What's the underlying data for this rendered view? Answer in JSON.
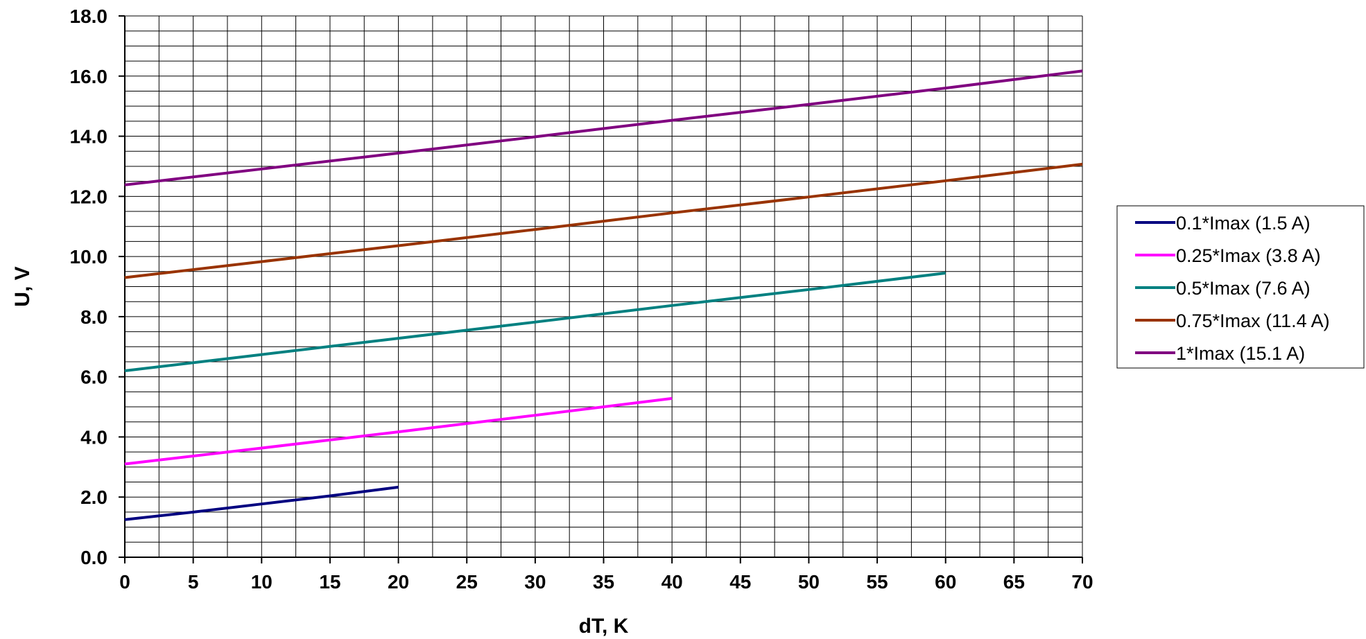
{
  "chart_data": {
    "type": "line",
    "xlabel": "dT, K",
    "ylabel": "U, V",
    "xlim": [
      0,
      70
    ],
    "ylim": [
      0,
      18
    ],
    "x_ticks": [
      0,
      5,
      10,
      15,
      20,
      25,
      30,
      35,
      40,
      45,
      50,
      55,
      60,
      65,
      70
    ],
    "x_tick_labels": [
      "0",
      "5",
      "10",
      "15",
      "20",
      "25",
      "30",
      "35",
      "40",
      "45",
      "50",
      "55",
      "60",
      "65",
      "70"
    ],
    "y_ticks": [
      0,
      2,
      4,
      6,
      8,
      10,
      12,
      14,
      16,
      18
    ],
    "y_tick_labels": [
      "0.0",
      "2.0",
      "4.0",
      "6.0",
      "8.0",
      "10.0",
      "12.0",
      "14.0",
      "16.0",
      "18.0"
    ],
    "x_minor_step": 2.5,
    "y_minor_step": 0.5,
    "grid": true,
    "legend_position": "right",
    "series": [
      {
        "name": "0.1*Imax (1.5 A)",
        "color": "#000080",
        "x": [
          0,
          5,
          10,
          15,
          20
        ],
        "y": [
          1.25,
          1.5,
          1.77,
          2.04,
          2.33
        ]
      },
      {
        "name": "0.25*Imax (3.8 A)",
        "color": "#ff00ff",
        "x": [
          0,
          10,
          20,
          30,
          40
        ],
        "y": [
          3.1,
          3.63,
          4.17,
          4.72,
          5.28
        ]
      },
      {
        "name": "0.5*Imax (7.6 A)",
        "color": "#008080",
        "x": [
          0,
          10,
          20,
          30,
          40,
          50,
          60
        ],
        "y": [
          6.2,
          6.74,
          7.28,
          7.82,
          8.37,
          8.9,
          9.45
        ]
      },
      {
        "name": "0.75*Imax (11.4 A)",
        "color": "#993300",
        "x": [
          0,
          10,
          20,
          30,
          40,
          50,
          60,
          70
        ],
        "y": [
          9.3,
          9.83,
          10.36,
          10.9,
          11.45,
          11.98,
          12.52,
          13.07
        ]
      },
      {
        "name": "1*Imax (15.1 A)",
        "color": "#800080",
        "x": [
          0,
          10,
          20,
          30,
          40,
          50,
          60,
          70
        ],
        "y": [
          12.38,
          12.91,
          13.44,
          13.98,
          14.53,
          15.06,
          15.6,
          16.17
        ]
      }
    ]
  }
}
